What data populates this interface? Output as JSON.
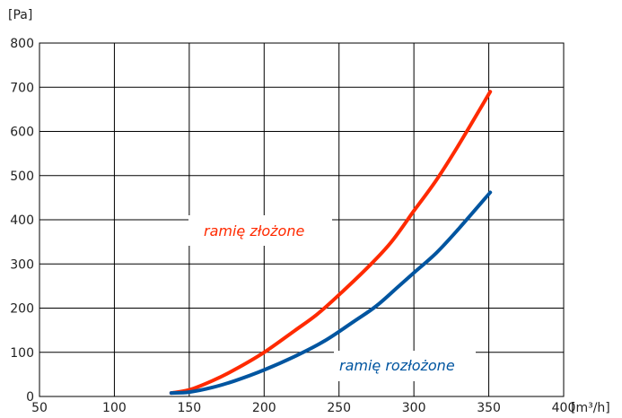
{
  "chart_data": {
    "type": "line",
    "ylabel": "[Pa]",
    "xlabel": "[m³/h]",
    "xlim": [
      50,
      400
    ],
    "ylim": [
      0,
      800
    ],
    "x_ticks": [
      50,
      100,
      150,
      200,
      250,
      300,
      350,
      400
    ],
    "y_ticks": [
      0,
      100,
      200,
      300,
      400,
      500,
      600,
      700,
      800
    ],
    "grid": true,
    "series": [
      {
        "name": "ramię złożone",
        "color": "#ff2a00",
        "x": [
          138,
          150,
          165,
          180,
          200,
          220,
          235,
          250,
          270,
          285,
          300,
          315,
          330,
          351
        ],
        "y": [
          8,
          15,
          35,
          60,
          100,
          148,
          185,
          230,
          295,
          350,
          420,
          490,
          570,
          690
        ]
      },
      {
        "name": "ramię rozłożone",
        "color": "#0055a0",
        "x": [
          138,
          150,
          165,
          180,
          200,
          220,
          240,
          260,
          275,
          290,
          300,
          315,
          330,
          351
        ],
        "y": [
          8,
          10,
          20,
          35,
          60,
          90,
          125,
          170,
          205,
          250,
          280,
          325,
          380,
          462
        ]
      }
    ]
  }
}
